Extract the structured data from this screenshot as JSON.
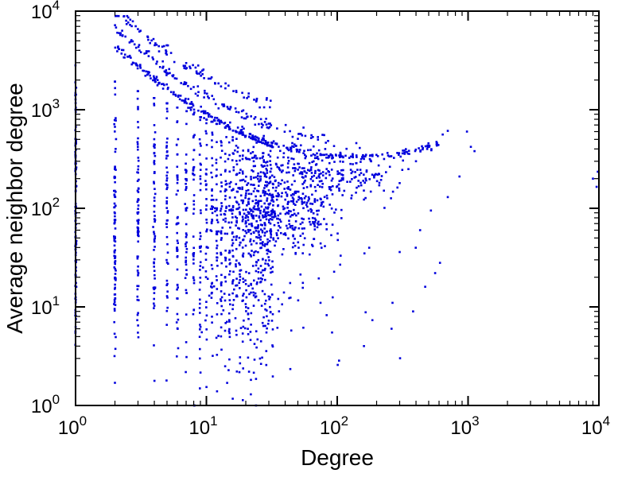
{
  "chart_data": {
    "type": "scatter",
    "title": "",
    "xlabel": "Degree",
    "ylabel": "Average neighbor degree",
    "xscale": "log",
    "yscale": "log",
    "xlim": [
      1,
      10000
    ],
    "ylim": [
      1,
      10000
    ],
    "grid": false,
    "legend": "none",
    "marker_color": "#0000dd",
    "frame_color": "#000000",
    "tick_exponents": [
      0,
      1,
      2,
      3,
      4
    ],
    "minor_mantissas": [
      2,
      3,
      4,
      5,
      6,
      7,
      8,
      9
    ],
    "seed": 42,
    "clusters": [
      {
        "type": "stripes",
        "x_from": 1,
        "x_to": 32,
        "base_n": 90,
        "ref_x": 2,
        "decay": 0.55,
        "logy_mean": 1.85,
        "logy_sd": 0.75,
        "logy_min": 0,
        "max_a": 3.45,
        "max_b": 0.55,
        "x_jitter": 0.003
      },
      {
        "type": "band",
        "n": 300,
        "u_from": 0.3,
        "u_to": 2.78,
        "a": 0.33,
        "u0": 2.15,
        "c": 2.52,
        "offset": 0,
        "jitter": 0.022
      },
      {
        "type": "band",
        "n": 130,
        "u_from": 0.3,
        "u_to": 1.95,
        "a": 0.33,
        "u0": 2.15,
        "c": 2.52,
        "offset": 0.18,
        "jitter": 0.025
      },
      {
        "type": "band",
        "n": 90,
        "u_from": 0.3,
        "u_to": 1.5,
        "a": 0.33,
        "u0": 2.15,
        "c": 2.52,
        "offset": 0.38,
        "jitter": 0.03
      },
      {
        "type": "band",
        "n": 90,
        "u_from": 1.2,
        "u_to": 2.35,
        "a": 0.33,
        "u0": 2.15,
        "c": 2.52,
        "offset": -0.2,
        "jitter": 0.04
      },
      {
        "type": "cloud",
        "n": 420,
        "ux_mean": 1.55,
        "ux_sd": 0.22,
        "uy_mean": 1.98,
        "uy_sd": 0.2,
        "ux_min": 1.0,
        "ux_max": 2.35,
        "uy_min": 1.2,
        "uy_max": 2.5
      },
      {
        "type": "cloud",
        "n": 130,
        "ux_mean": 1.9,
        "ux_sd": 0.3,
        "uy_mean": 2.33,
        "uy_sd": 0.15,
        "ux_min": 1.2,
        "ux_max": 2.6,
        "uy_min": 1.9,
        "uy_max": 2.7
      },
      {
        "type": "cloud",
        "n": 90,
        "ux_mean": 1.45,
        "ux_sd": 0.4,
        "uy_mean": 0.95,
        "uy_sd": 0.4,
        "ux_min": 0.95,
        "ux_max": 2.6,
        "uy_min": 0.05,
        "uy_max": 1.6
      },
      {
        "type": "points",
        "pts": [
          [
            9000,
            200
          ],
          [
            9600,
            165
          ],
          [
            9800,
            235
          ],
          [
            1050,
            420
          ],
          [
            1120,
            380
          ],
          [
            980,
            600
          ],
          [
            700,
            610
          ],
          [
            640,
            560
          ],
          [
            560,
            22
          ],
          [
            610,
            28
          ],
          [
            470,
            16
          ],
          [
            380,
            9
          ],
          [
            260,
            6
          ],
          [
            160,
            4
          ],
          [
            300,
            36
          ],
          [
            430,
            60
          ],
          [
            520,
            95
          ],
          [
            700,
            130
          ],
          [
            860,
            210
          ],
          [
            300,
            180
          ],
          [
            350,
            250
          ],
          [
            400,
            300
          ]
        ]
      }
    ]
  }
}
